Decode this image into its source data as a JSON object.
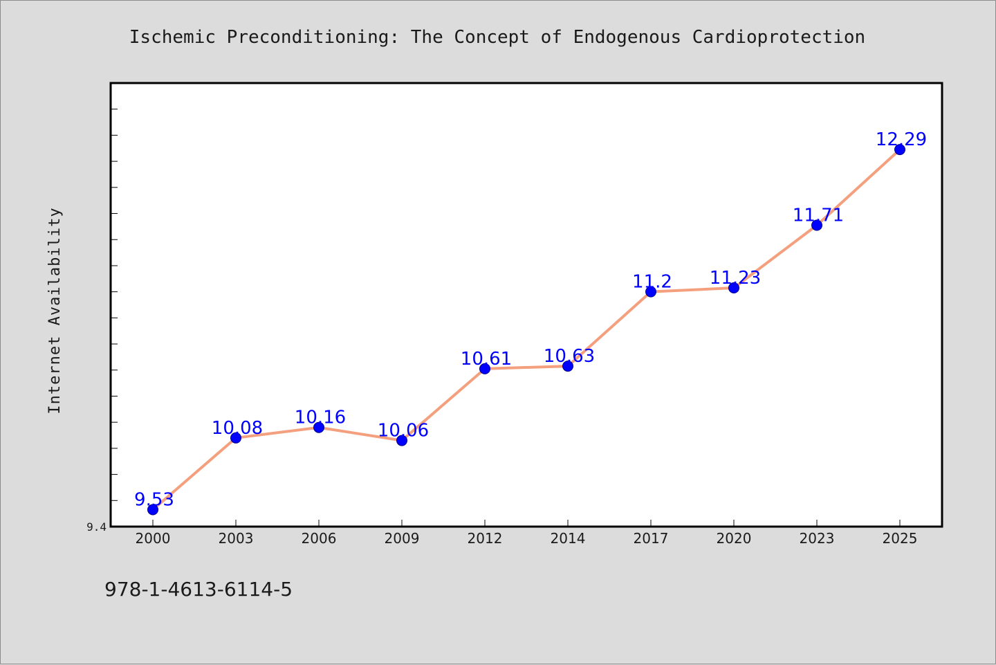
{
  "chart_data": {
    "type": "line",
    "title": "Ischemic Preconditioning: The Concept of Endogenous Cardioprotection",
    "xlabel": "",
    "ylabel": "Internet Availability",
    "categories": [
      "2000",
      "2003",
      "2006",
      "2009",
      "2012",
      "2014",
      "2017",
      "2020",
      "2023",
      "2025"
    ],
    "series": [
      {
        "values": [
          9.53,
          10.08,
          10.16,
          10.06,
          10.61,
          10.63,
          11.2,
          11.23,
          11.71,
          12.29
        ],
        "labels": [
          "9.53",
          "10.08",
          "10.16",
          "10.06",
          "10.61",
          "10.63",
          "11.2",
          "11.23",
          "11.71",
          "12.29"
        ]
      }
    ],
    "y_tick_labels": [
      "9.4"
    ],
    "ylim": [
      9.4,
      12.8
    ],
    "grid": false,
    "line_color": "#f4a07e",
    "marker_color": "#0000ff"
  },
  "footer": {
    "isbn": "978-1-4613-6114-5"
  }
}
